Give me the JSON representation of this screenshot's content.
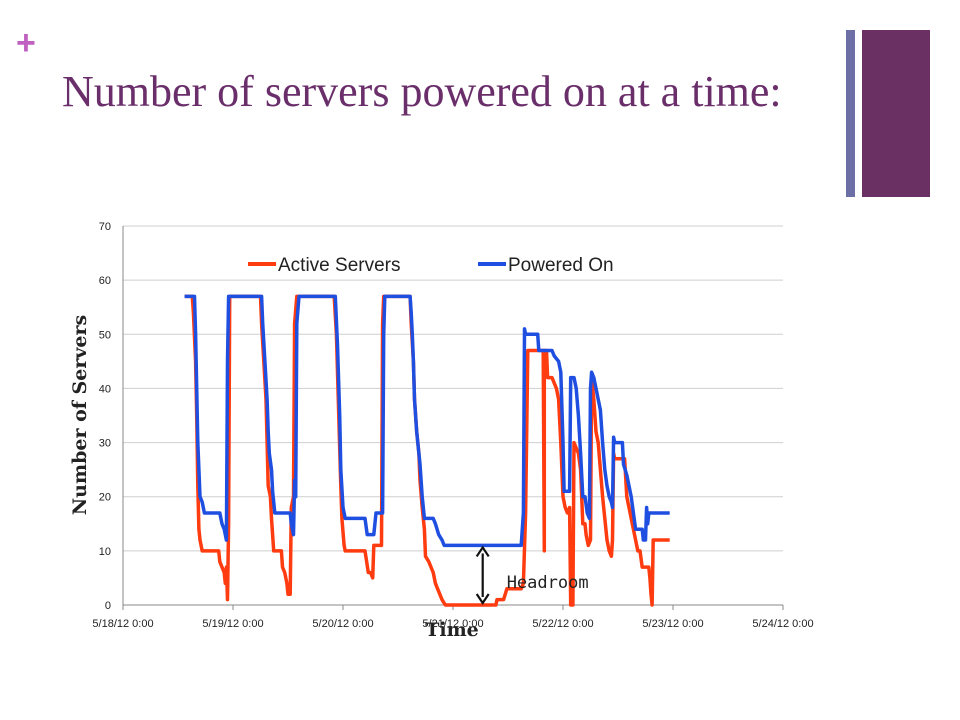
{
  "slide": {
    "plus_glyph": "+",
    "title": "Number of servers powered on at a time:",
    "accent_color": "#6a2f63",
    "accent_color_secondary": "#6b6fa6"
  },
  "chart_data": {
    "type": "line",
    "xlabel": "Time",
    "ylabel": "Number of Servers",
    "ylim": [
      0,
      70
    ],
    "yticks": [
      0,
      10,
      20,
      30,
      40,
      50,
      60,
      70
    ],
    "xlim": [
      0,
      6
    ],
    "xticks": [
      {
        "value": 0,
        "label": "5/18/12 0:00"
      },
      {
        "value": 1,
        "label": "5/19/12 0:00"
      },
      {
        "value": 2,
        "label": "5/20/12 0:00"
      },
      {
        "value": 3,
        "label": "5/21/12 0:00"
      },
      {
        "value": 4,
        "label": "5/22/12 0:00"
      },
      {
        "value": 5,
        "label": "5/23/12 0:00"
      },
      {
        "value": 6,
        "label": "5/24/12 0:00"
      }
    ],
    "grid": "horizontal",
    "legend_position": "top",
    "annotations": [
      {
        "text": "Headroom",
        "x": 3.27,
        "y_from": 0,
        "y_to": 11
      }
    ],
    "series": [
      {
        "name": "Active Servers",
        "color": "#ff3b10",
        "points": [
          [
            0.56,
            57
          ],
          [
            0.63,
            57
          ],
          [
            0.64,
            54
          ],
          [
            0.66,
            45
          ],
          [
            0.67,
            35
          ],
          [
            0.68,
            22
          ],
          [
            0.69,
            14
          ],
          [
            0.7,
            12
          ],
          [
            0.72,
            10
          ],
          [
            0.8,
            10
          ],
          [
            0.87,
            10
          ],
          [
            0.88,
            8
          ],
          [
            0.92,
            6
          ],
          [
            0.93,
            4
          ],
          [
            0.94,
            7
          ],
          [
            0.95,
            1
          ],
          [
            0.96,
            15
          ],
          [
            0.97,
            57
          ],
          [
            1.25,
            57
          ],
          [
            1.26,
            52
          ],
          [
            1.28,
            45
          ],
          [
            1.3,
            38
          ],
          [
            1.31,
            30
          ],
          [
            1.32,
            22
          ],
          [
            1.34,
            20
          ],
          [
            1.35,
            16
          ],
          [
            1.37,
            10
          ],
          [
            1.44,
            10
          ],
          [
            1.45,
            7
          ],
          [
            1.47,
            6
          ],
          [
            1.49,
            4
          ],
          [
            1.5,
            2
          ],
          [
            1.52,
            2
          ],
          [
            1.53,
            18
          ],
          [
            1.55,
            20
          ],
          [
            1.56,
            52
          ],
          [
            1.58,
            57
          ],
          [
            1.92,
            57
          ],
          [
            1.94,
            50
          ],
          [
            1.96,
            36
          ],
          [
            1.98,
            22
          ],
          [
            1.99,
            16
          ],
          [
            2.01,
            11
          ],
          [
            2.02,
            10
          ],
          [
            2.2,
            10
          ],
          [
            2.23,
            6
          ],
          [
            2.25,
            6
          ],
          [
            2.27,
            5
          ],
          [
            2.28,
            11
          ],
          [
            2.35,
            11
          ],
          [
            2.36,
            52
          ],
          [
            2.37,
            57
          ],
          [
            2.61,
            57
          ],
          [
            2.62,
            52
          ],
          [
            2.64,
            45
          ],
          [
            2.65,
            38
          ],
          [
            2.67,
            32
          ],
          [
            2.69,
            28
          ],
          [
            2.7,
            23
          ],
          [
            2.72,
            18
          ],
          [
            2.74,
            14
          ],
          [
            2.75,
            9
          ],
          [
            2.78,
            8
          ],
          [
            2.8,
            7
          ],
          [
            2.82,
            6
          ],
          [
            2.84,
            4
          ],
          [
            2.86,
            3
          ],
          [
            2.88,
            2
          ],
          [
            2.9,
            1
          ],
          [
            2.93,
            0
          ],
          [
            3.39,
            0
          ],
          [
            3.4,
            1
          ],
          [
            3.46,
            1
          ],
          [
            3.49,
            3
          ],
          [
            3.62,
            3
          ],
          [
            3.64,
            4
          ],
          [
            3.66,
            17
          ],
          [
            3.68,
            47
          ],
          [
            3.82,
            47
          ],
          [
            3.83,
            10
          ],
          [
            3.83,
            47
          ],
          [
            3.85,
            47
          ],
          [
            3.86,
            42
          ],
          [
            3.9,
            42
          ],
          [
            3.92,
            41
          ],
          [
            3.94,
            40
          ],
          [
            3.96,
            38
          ],
          [
            3.98,
            30
          ],
          [
            4.0,
            20
          ],
          [
            4.02,
            18
          ],
          [
            4.04,
            17
          ],
          [
            4.06,
            18
          ],
          [
            4.07,
            0
          ],
          [
            4.09,
            0
          ],
          [
            4.1,
            30
          ],
          [
            4.14,
            28
          ],
          [
            4.16,
            25
          ],
          [
            4.17,
            20
          ],
          [
            4.18,
            15
          ],
          [
            4.2,
            15
          ],
          [
            4.21,
            13
          ],
          [
            4.23,
            11
          ],
          [
            4.25,
            12
          ],
          [
            4.26,
            42
          ],
          [
            4.28,
            38
          ],
          [
            4.3,
            32
          ],
          [
            4.32,
            30
          ],
          [
            4.34,
            25
          ],
          [
            4.36,
            20
          ],
          [
            4.38,
            16
          ],
          [
            4.4,
            12
          ],
          [
            4.42,
            10
          ],
          [
            4.44,
            9
          ],
          [
            4.45,
            12
          ],
          [
            4.46,
            28
          ],
          [
            4.47,
            27
          ],
          [
            4.56,
            27
          ],
          [
            4.58,
            20
          ],
          [
            4.6,
            18
          ],
          [
            4.62,
            16
          ],
          [
            4.64,
            14
          ],
          [
            4.66,
            12
          ],
          [
            4.68,
            10
          ],
          [
            4.7,
            10
          ],
          [
            4.72,
            7
          ],
          [
            4.78,
            7
          ],
          [
            4.79,
            5
          ],
          [
            4.8,
            2
          ],
          [
            4.81,
            0
          ],
          [
            4.82,
            12
          ],
          [
            4.97,
            12
          ]
        ]
      },
      {
        "name": "Powered On",
        "color": "#1f4fe0",
        "points": [
          [
            0.56,
            57
          ],
          [
            0.65,
            57
          ],
          [
            0.66,
            50
          ],
          [
            0.67,
            40
          ],
          [
            0.68,
            30
          ],
          [
            0.69,
            25
          ],
          [
            0.7,
            20
          ],
          [
            0.72,
            19
          ],
          [
            0.74,
            17
          ],
          [
            0.88,
            17
          ],
          [
            0.9,
            15
          ],
          [
            0.92,
            14
          ],
          [
            0.94,
            12
          ],
          [
            0.95,
            45
          ],
          [
            0.96,
            57
          ],
          [
            1.26,
            57
          ],
          [
            1.27,
            52
          ],
          [
            1.29,
            45
          ],
          [
            1.31,
            38
          ],
          [
            1.32,
            32
          ],
          [
            1.33,
            28
          ],
          [
            1.35,
            25
          ],
          [
            1.36,
            21
          ],
          [
            1.38,
            17
          ],
          [
            1.52,
            17
          ],
          [
            1.53,
            15
          ],
          [
            1.55,
            13
          ],
          [
            1.56,
            23
          ],
          [
            1.57,
            20
          ],
          [
            1.58,
            52
          ],
          [
            1.6,
            57
          ],
          [
            1.93,
            57
          ],
          [
            1.95,
            48
          ],
          [
            1.97,
            35
          ],
          [
            1.98,
            25
          ],
          [
            2.0,
            18
          ],
          [
            2.02,
            16
          ],
          [
            2.2,
            16
          ],
          [
            2.22,
            13
          ],
          [
            2.28,
            13
          ],
          [
            2.3,
            17
          ],
          [
            2.36,
            17
          ],
          [
            2.37,
            50
          ],
          [
            2.38,
            57
          ],
          [
            2.61,
            57
          ],
          [
            2.62,
            54
          ],
          [
            2.63,
            50
          ],
          [
            2.64,
            45
          ],
          [
            2.65,
            38
          ],
          [
            2.67,
            32
          ],
          [
            2.69,
            28
          ],
          [
            2.7,
            26
          ],
          [
            2.72,
            20
          ],
          [
            2.74,
            16
          ],
          [
            2.82,
            16
          ],
          [
            2.84,
            15
          ],
          [
            2.87,
            13
          ],
          [
            2.9,
            12
          ],
          [
            2.92,
            11
          ],
          [
            3.62,
            11
          ],
          [
            3.64,
            17
          ],
          [
            3.65,
            51
          ],
          [
            3.66,
            50
          ],
          [
            3.77,
            50
          ],
          [
            3.78,
            47
          ],
          [
            3.9,
            47
          ],
          [
            3.92,
            46
          ],
          [
            3.96,
            45
          ],
          [
            3.98,
            43
          ],
          [
            4.0,
            30
          ],
          [
            4.01,
            21
          ],
          [
            4.06,
            21
          ],
          [
            4.07,
            42
          ],
          [
            4.1,
            42
          ],
          [
            4.12,
            40
          ],
          [
            4.14,
            35
          ],
          [
            4.16,
            28
          ],
          [
            4.18,
            20
          ],
          [
            4.2,
            20
          ],
          [
            4.22,
            17
          ],
          [
            4.24,
            16
          ],
          [
            4.25,
            40
          ],
          [
            4.26,
            43
          ],
          [
            4.28,
            42
          ],
          [
            4.3,
            40
          ],
          [
            4.32,
            38
          ],
          [
            4.34,
            36
          ],
          [
            4.36,
            30
          ],
          [
            4.38,
            25
          ],
          [
            4.4,
            22
          ],
          [
            4.42,
            20
          ],
          [
            4.44,
            19
          ],
          [
            4.45,
            18
          ],
          [
            4.46,
            31
          ],
          [
            4.47,
            30
          ],
          [
            4.54,
            30
          ],
          [
            4.55,
            26
          ],
          [
            4.58,
            24
          ],
          [
            4.6,
            22
          ],
          [
            4.62,
            20
          ],
          [
            4.64,
            17
          ],
          [
            4.66,
            14
          ],
          [
            4.72,
            14
          ],
          [
            4.73,
            12
          ],
          [
            4.75,
            12
          ],
          [
            4.76,
            18
          ],
          [
            4.77,
            15
          ],
          [
            4.78,
            17
          ],
          [
            4.97,
            17
          ]
        ]
      }
    ]
  }
}
